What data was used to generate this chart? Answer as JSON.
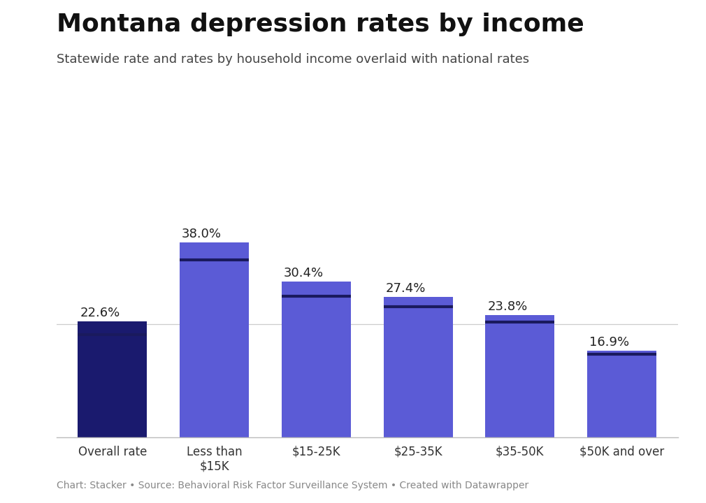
{
  "title": "Montana depression rates by income",
  "subtitle": "Statewide rate and rates by household income overlaid with national rates",
  "footer": "Chart: Stacker • Source: Behavioral Risk Factor Surveillance System • Created with Datawrapper",
  "categories": [
    "Overall rate",
    "Less than\n$15K",
    "$15-25K",
    "$25-35K",
    "$35-50K",
    "$50K and over"
  ],
  "values": [
    22.6,
    38.0,
    30.4,
    27.4,
    23.8,
    16.9
  ],
  "national_rates": [
    20.0,
    34.5,
    27.5,
    25.5,
    22.5,
    16.2
  ],
  "bar_colors": [
    "#1a1a6e",
    "#5b5bd6",
    "#5b5bd6",
    "#5b5bd6",
    "#5b5bd6",
    "#5b5bd6"
  ],
  "national_line_color": "#1a1a5e",
  "background_color": "#ffffff",
  "ylim": [
    0,
    44
  ],
  "title_fontsize": 26,
  "subtitle_fontsize": 13,
  "label_fontsize": 13,
  "tick_fontsize": 12,
  "footer_fontsize": 10,
  "bar_width": 0.68
}
